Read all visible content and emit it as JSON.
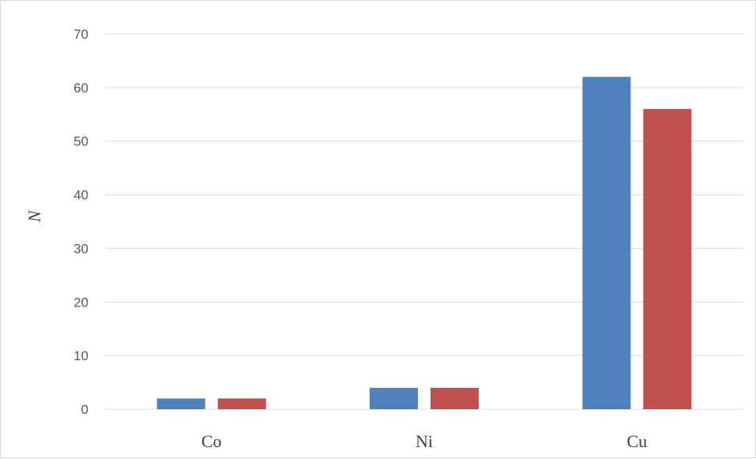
{
  "chart_data": {
    "type": "bar",
    "categories": [
      "Co",
      "Ni",
      "Cu"
    ],
    "series": [
      {
        "values": [
          2,
          4,
          62
        ],
        "color": "#4f81bd"
      },
      {
        "values": [
          2,
          4,
          56
        ],
        "color": "#c0504d"
      }
    ],
    "ylabel": "N",
    "xlabel": "",
    "ylim": [
      0,
      70
    ],
    "yticks": [
      0,
      10,
      20,
      30,
      40,
      50,
      60,
      70
    ],
    "grid": true,
    "legend": "none"
  }
}
